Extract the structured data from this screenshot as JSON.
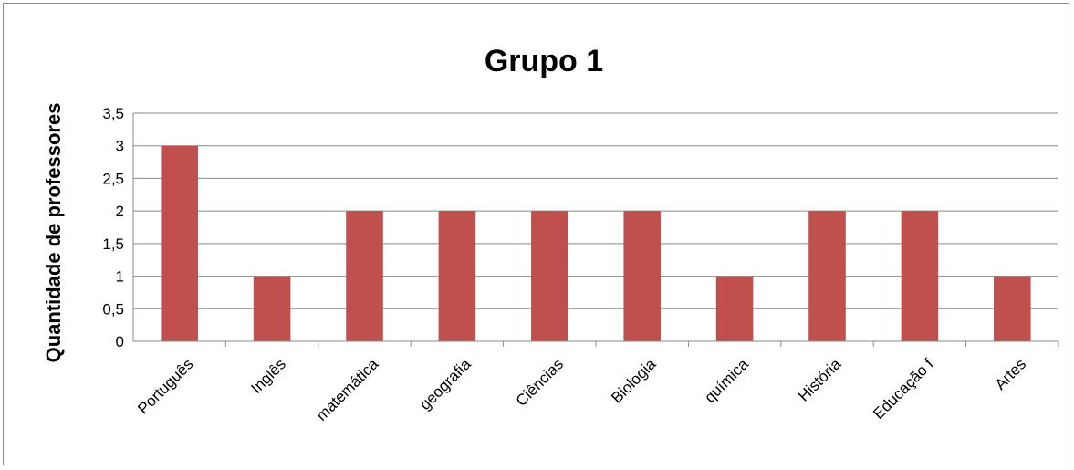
{
  "chart_data": {
    "type": "bar",
    "title": "Grupo 1",
    "xlabel": "",
    "ylabel": "Quantidade de professores",
    "categories": [
      "Português",
      "Inglês",
      "matemática",
      "geografia",
      "Ciências",
      "Biologia",
      "química",
      "História",
      "Educação f",
      "Artes"
    ],
    "values": [
      3,
      1,
      2,
      2,
      2,
      2,
      1,
      2,
      2,
      1
    ],
    "ylim": [
      0,
      3.5
    ],
    "yticks": [
      "0",
      "0,5",
      "1",
      "1,5",
      "2",
      "2,5",
      "3",
      "3,5"
    ],
    "grid": true,
    "legend": "none",
    "bar_color": "#c0504d"
  }
}
